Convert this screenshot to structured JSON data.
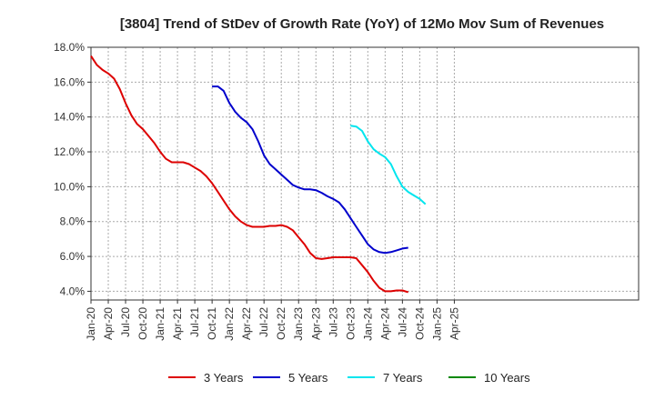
{
  "chart_data": {
    "type": "line",
    "title": "[3804]  Trend of StDev of Growth Rate (YoY) of 12Mo Mov Sum of Revenues",
    "xlabel": "",
    "ylabel": "",
    "ylim": [
      3.5,
      18.0
    ],
    "y_ticks": [
      "4.0%",
      "6.0%",
      "8.0%",
      "10.0%",
      "12.0%",
      "14.0%",
      "16.0%",
      "18.0%"
    ],
    "y_tick_values": [
      4,
      6,
      8,
      10,
      12,
      14,
      16,
      18
    ],
    "x_ticks": [
      "Jan-20",
      "Apr-20",
      "Jul-20",
      "Oct-20",
      "Jan-21",
      "Apr-21",
      "Jul-21",
      "Oct-21",
      "Jan-22",
      "Apr-22",
      "Jul-22",
      "Oct-22",
      "Jan-23",
      "Apr-23",
      "Jul-23",
      "Oct-23",
      "Jan-24",
      "Apr-24",
      "Jul-24",
      "Oct-24",
      "Jan-25",
      "Apr-25"
    ],
    "x_start": "Jan-20",
    "grid": true,
    "legend_position": "bottom",
    "series": [
      {
        "name": "3 Years",
        "color": "#dd0000",
        "start_index": 0,
        "values": [
          17.5,
          17.0,
          16.7,
          16.5,
          16.2,
          15.6,
          14.8,
          14.1,
          13.6,
          13.3,
          12.9,
          12.5,
          12.0,
          11.6,
          11.4,
          11.4,
          11.4,
          11.3,
          11.1,
          10.9,
          10.6,
          10.2,
          9.7,
          9.2,
          8.7,
          8.3,
          8.0,
          7.8,
          7.7,
          7.7,
          7.7,
          7.75,
          7.75,
          7.8,
          7.7,
          7.5,
          7.1,
          6.7,
          6.2,
          5.9,
          5.85,
          5.9,
          5.95,
          5.95,
          5.95,
          5.95,
          5.9,
          5.5,
          5.1,
          4.6,
          4.2,
          4.0,
          4.0,
          4.05,
          4.05,
          3.95
        ]
      },
      {
        "name": "5 Years",
        "color": "#0000cc",
        "start_index": 21,
        "values": [
          15.75,
          15.75,
          15.5,
          14.8,
          14.3,
          13.95,
          13.7,
          13.3,
          12.6,
          11.8,
          11.3,
          11.0,
          10.7,
          10.4,
          10.1,
          9.95,
          9.85,
          9.85,
          9.8,
          9.65,
          9.45,
          9.3,
          9.1,
          8.7,
          8.2,
          7.7,
          7.2,
          6.7,
          6.4,
          6.25,
          6.2,
          6.25,
          6.35,
          6.45,
          6.5
        ]
      },
      {
        "name": "7 Years",
        "color": "#00e5ee",
        "start_index": 45,
        "values": [
          13.5,
          13.45,
          13.2,
          12.6,
          12.15,
          11.9,
          11.7,
          11.3,
          10.6,
          10.0,
          9.7,
          9.5,
          9.3,
          9.0
        ]
      },
      {
        "name": "10 Years",
        "color": "#008800",
        "start_index": 0,
        "values": []
      }
    ]
  }
}
